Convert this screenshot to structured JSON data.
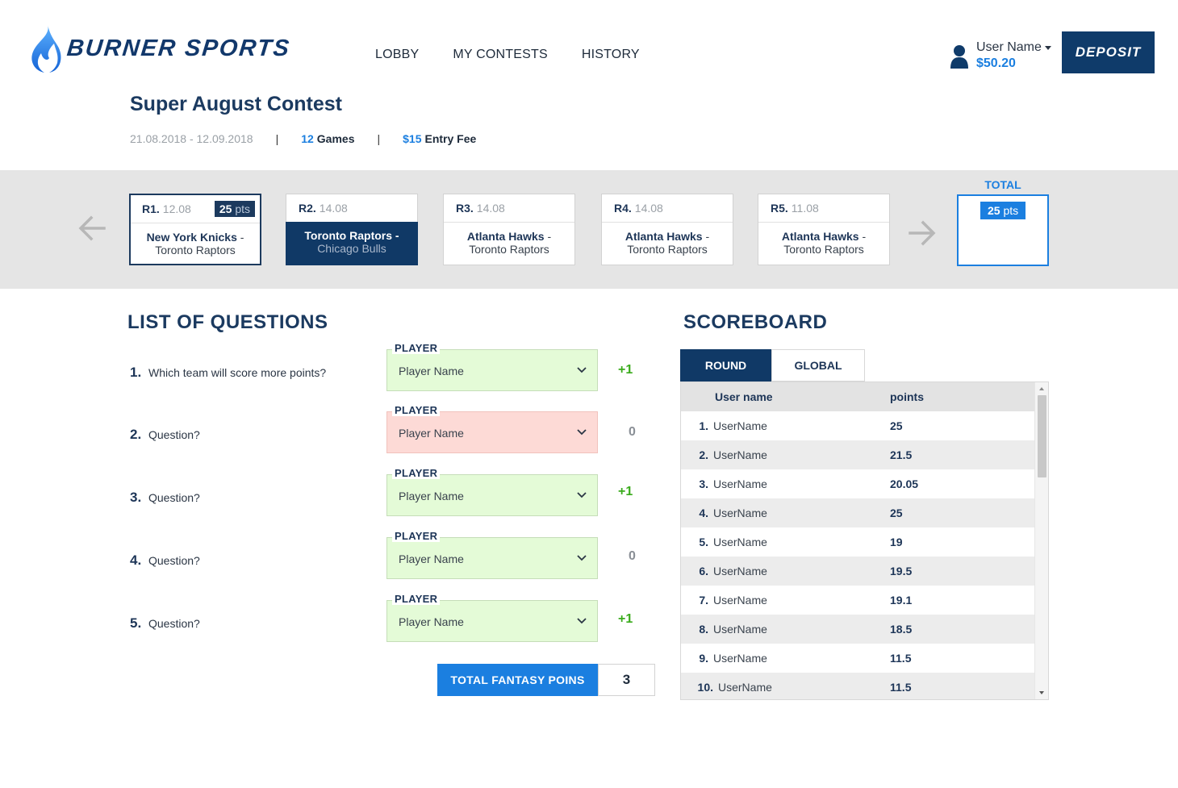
{
  "brand": {
    "name": "BURNER SPORTS"
  },
  "nav": {
    "items": [
      "LOBBY",
      "MY CONTESTS",
      "HISTORY"
    ]
  },
  "user": {
    "name": "User Name",
    "balance": "$50.20"
  },
  "deposit_label": "DEPOSIT",
  "contest": {
    "title": "Super August Contest",
    "dates": "21.08.2018 - 12.09.2018",
    "separator": "|",
    "games_count": "12",
    "games_label": "Games",
    "entry_fee": "$15",
    "entry_fee_label": "Entry Fee"
  },
  "rounds": [
    {
      "id": "R1.",
      "date": "12.08",
      "pts": "25",
      "pts_unit": "pts",
      "team1": "New York Knicks",
      "team2": "Toronto Raptors",
      "state": "selected"
    },
    {
      "id": "R2.",
      "date": "14.08",
      "team1": "Toronto Raptors",
      "team2": "Chicago Bulls",
      "state": "active"
    },
    {
      "id": "R3.",
      "date": "14.08",
      "team1": "Atlanta Hawks",
      "team2": "Toronto Raptors",
      "state": "normal"
    },
    {
      "id": "R4.",
      "date": "14.08",
      "team1": "Atlanta Hawks",
      "team2": "Toronto Raptors",
      "state": "normal"
    },
    {
      "id": "R5.",
      "date": "11.08",
      "team1": "Atlanta Hawks",
      "team2": "Toronto Raptors",
      "state": "normal"
    }
  ],
  "team_separator": " -",
  "total": {
    "label": "TOTAL",
    "pts": "25",
    "pts_unit": "pts"
  },
  "questions": {
    "title": "LIST OF QUESTIONS",
    "field_label": "PLAYER",
    "items": [
      {
        "num": "1.",
        "text": "Which team will score more points?",
        "value": "Player Name",
        "score": "+1",
        "result": "correct"
      },
      {
        "num": "2.",
        "text": "Question?",
        "value": "Player Name",
        "score": "0",
        "result": "wrong"
      },
      {
        "num": "3.",
        "text": "Question?",
        "value": "Player Name",
        "score": "+1",
        "result": "correct"
      },
      {
        "num": "4.",
        "text": "Question?",
        "value": "Player Name",
        "score": "0",
        "result": "correct"
      },
      {
        "num": "5.",
        "text": "Question?",
        "value": "Player Name",
        "score": "+1",
        "result": "correct"
      }
    ],
    "total_label": "TOTAL FANTASY POINS",
    "total_value": "3"
  },
  "scoreboard": {
    "title": "SCOREBOARD",
    "tabs": [
      "ROUND",
      "GLOBAL"
    ],
    "active_tab": "ROUND",
    "columns": [
      "User name",
      "points"
    ],
    "rows": [
      {
        "rank": "1.",
        "name": "UserName",
        "points": "25"
      },
      {
        "rank": "2.",
        "name": "UserName",
        "points": "21.5"
      },
      {
        "rank": "3.",
        "name": "UserName",
        "points": "20.05"
      },
      {
        "rank": "4.",
        "name": "UserName",
        "points": "25"
      },
      {
        "rank": "5.",
        "name": "UserName",
        "points": "19"
      },
      {
        "rank": "6.",
        "name": "UserName",
        "points": "19.5"
      },
      {
        "rank": "7.",
        "name": "UserName",
        "points": "19.1"
      },
      {
        "rank": "8.",
        "name": "UserName",
        "points": "18.5"
      },
      {
        "rank": "9.",
        "name": "UserName",
        "points": "11.5"
      },
      {
        "rank": "10.",
        "name": "UserName",
        "points": "11.5"
      }
    ]
  },
  "colors": {
    "primary_dark": "#103966",
    "accent_blue": "#1b7fe0",
    "correct_bg": "#e4fbd7",
    "wrong_bg": "#fddad6",
    "plus_green": "#3aab1c"
  }
}
